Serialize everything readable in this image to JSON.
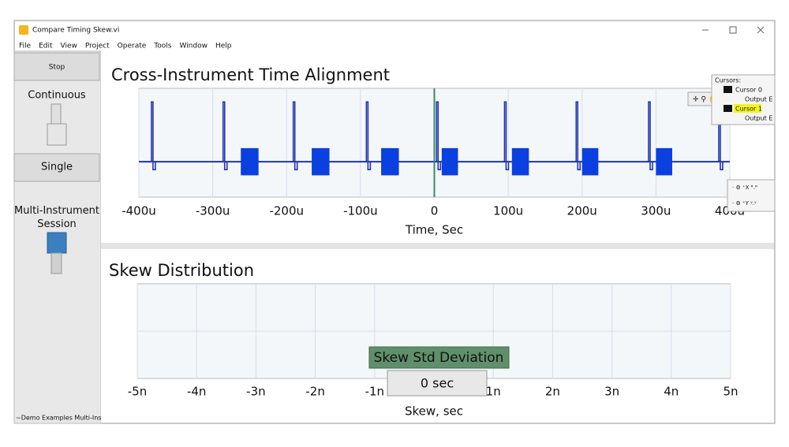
{
  "window": {
    "title": "Compare Timing Skew.vi",
    "menu": [
      "File",
      "Edit",
      "View",
      "Project",
      "Operate",
      "Tools",
      "Window",
      "Help"
    ]
  },
  "controls": {
    "stop": "Stop",
    "continuous": "Continuous",
    "single": "Single",
    "session": "Multi-Instrument Session",
    "status": "~Demo Examples Multi-Ins"
  },
  "cursor_legend": {
    "title": "Cursors:",
    "items": [
      {
        "name": "Cursor 0",
        "plot": "Output E"
      },
      {
        "name": "Cursor 1",
        "plot": "Output E"
      }
    ]
  },
  "indicator": {
    "label": "Skew Std Deviation",
    "value": "0 sec"
  },
  "chart_data": [
    {
      "type": "waveform",
      "title": "Cross-Instrument Time Alignment",
      "x_label": "Time, Sec",
      "xlim": [
        -0.0004,
        0.0004
      ],
      "ylim": [
        -1.3,
        2.7
      ],
      "xticks": [
        {
          "value": -0.0004,
          "label": "-400u"
        },
        {
          "value": -0.0003,
          "label": "-300u"
        },
        {
          "value": -0.0002,
          "label": "-200u"
        },
        {
          "value": -0.0001,
          "label": "-100u"
        },
        0,
        {
          "value": 0.0001,
          "label": "100u"
        },
        {
          "value": 0.0002,
          "label": "200u"
        },
        {
          "value": 0.0003,
          "label": "300u"
        },
        {
          "value": 0.0004,
          "label": "400u"
        }
      ],
      "grid": true,
      "color": "#2233b0",
      "burst_color": "#0a3fe0",
      "cursor_x": 0,
      "cursor_color": "#3a8a6a",
      "spikes": {
        "x": [
          -0.000383,
          -0.000286,
          -0.000191,
          -9.2e-05,
          3e-06,
          9.5e-05,
          0.000192,
          0.00029,
          0.000385
        ],
        "values": [
          2.2,
          2.2,
          2.2,
          2.2,
          2.2,
          2.2,
          2.2,
          2.2,
          2.2
        ]
      },
      "bursts": {
        "x_start": [
          -0.000262,
          -0.000166,
          -7.2e-05,
          1e-05,
          0.000105,
          0.0002,
          0.0003
        ],
        "x_end": [
          -0.000238,
          -0.000142,
          -4.8e-05,
          3.2e-05,
          0.000128,
          0.000222,
          0.000322
        ],
        "values": [
          0.5,
          0.5,
          0.5,
          0.5,
          0.5,
          0.5,
          0.5
        ]
      }
    },
    {
      "type": "histogram",
      "title": "Skew Distribution",
      "x_label": "Skew, sec",
      "xlim": [
        -5e-09,
        5e-09
      ],
      "xticks": [
        {
          "value": -5e-09,
          "label": "-5n"
        },
        {
          "value": -4e-09,
          "label": "-4n"
        },
        {
          "value": -3e-09,
          "label": "-3n"
        },
        {
          "value": -2e-09,
          "label": "-2n"
        },
        {
          "value": -1e-09,
          "label": "-1n"
        },
        {
          "value": 1e-09,
          "label": "1n"
        },
        {
          "value": 2e-09,
          "label": "2n"
        },
        {
          "value": 3e-09,
          "label": "3n"
        },
        {
          "value": 4e-09,
          "label": "4n"
        },
        {
          "value": 5e-09,
          "label": "5n"
        }
      ],
      "grid": true
    }
  ]
}
